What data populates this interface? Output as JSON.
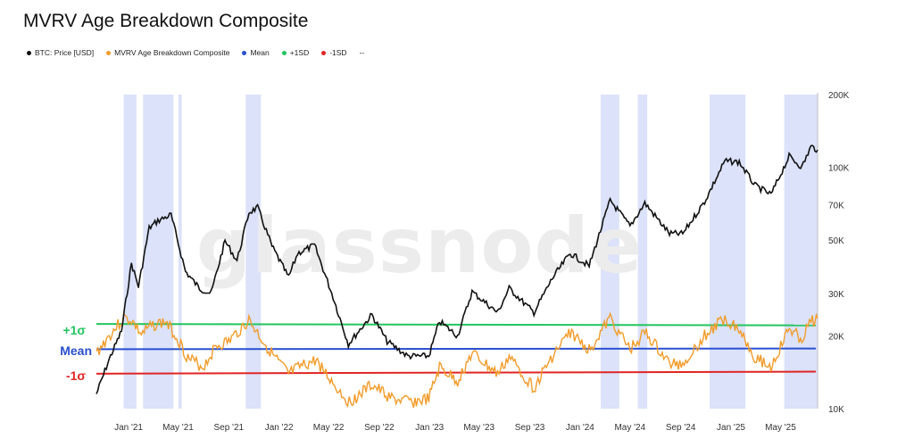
{
  "title": "MVRV Age Breakdown Composite",
  "watermark": "glassnode",
  "legend": [
    {
      "label": "BTC: Price [USD]",
      "color": "#111111"
    },
    {
      "label": "MVRV Age Breakdown Composite",
      "color": "#f29c2b"
    },
    {
      "label": "Mean",
      "color": "#2a4fd0"
    },
    {
      "label": "+1SD",
      "color": "#22c55e"
    },
    {
      "label": "-1SD",
      "color": "#e02424"
    },
    {
      "label": "--",
      "color": ""
    }
  ],
  "annotations": {
    "plus": "+1σ",
    "mean": "Mean",
    "minus": "-1σ"
  },
  "chart_data": {
    "type": "line",
    "x_ticks": [
      "Jan '21",
      "May '21",
      "Sep '21",
      "Jan '22",
      "May '22",
      "Sep '22",
      "Jan '23",
      "May '23",
      "Sep '23",
      "Jan '24",
      "May '24",
      "Sep '24",
      "Jan '25",
      "May '25"
    ],
    "y_right": {
      "scale": "log",
      "ticks": [
        "10K",
        "20K",
        "30K",
        "50K",
        "70K",
        "100K",
        "200K"
      ],
      "tick_values": [
        10000,
        20000,
        30000,
        50000,
        70000,
        100000,
        200000
      ],
      "ylim": [
        10000,
        200000
      ]
    },
    "btc_price": [
      [
        "2020-10-15",
        11500
      ],
      [
        "2020-11-15",
        16000
      ],
      [
        "2020-12-15",
        21000
      ],
      [
        "2021-01-08",
        40000
      ],
      [
        "2021-01-25",
        32000
      ],
      [
        "2021-02-20",
        56000
      ],
      [
        "2021-03-13",
        60000
      ],
      [
        "2021-04-14",
        63500
      ],
      [
        "2021-05-19",
        37000
      ],
      [
        "2021-06-22",
        31500
      ],
      [
        "2021-07-20",
        30000
      ],
      [
        "2021-08-23",
        49500
      ],
      [
        "2021-09-21",
        41000
      ],
      [
        "2021-10-20",
        65000
      ],
      [
        "2021-11-10",
        68000
      ],
      [
        "2021-12-15",
        47000
      ],
      [
        "2022-01-24",
        35000
      ],
      [
        "2022-02-15",
        44000
      ],
      [
        "2022-03-28",
        47500
      ],
      [
        "2022-05-12",
        29000
      ],
      [
        "2022-06-18",
        18500
      ],
      [
        "2022-08-14",
        24500
      ],
      [
        "2022-09-20",
        19000
      ],
      [
        "2022-11-09",
        16500
      ],
      [
        "2022-12-30",
        16500
      ],
      [
        "2023-01-25",
        23000
      ],
      [
        "2023-03-10",
        20000
      ],
      [
        "2023-04-14",
        30500
      ],
      [
        "2023-06-15",
        25000
      ],
      [
        "2023-07-13",
        31500
      ],
      [
        "2023-09-11",
        25000
      ],
      [
        "2023-10-25",
        34500
      ],
      [
        "2023-12-08",
        44000
      ],
      [
        "2024-01-23",
        39000
      ],
      [
        "2024-03-14",
        73000
      ],
      [
        "2024-05-01",
        57000
      ],
      [
        "2024-06-06",
        71000
      ],
      [
        "2024-08-05",
        53000
      ],
      [
        "2024-09-06",
        53000
      ],
      [
        "2024-10-29",
        72000
      ],
      [
        "2024-12-17",
        106000
      ],
      [
        "2025-01-21",
        105000
      ],
      [
        "2025-02-28",
        84000
      ],
      [
        "2025-04-08",
        77000
      ],
      [
        "2025-05-22",
        111000
      ],
      [
        "2025-06-22",
        100000
      ],
      [
        "2025-07-14",
        122000
      ],
      [
        "2025-07-30",
        118000
      ]
    ],
    "mvrv_composite": {
      "mean": [
        [
          0,
          0.41
        ],
        [
          1,
          0.42
        ]
      ],
      "plus_1sd": [
        [
          0,
          0.77
        ],
        [
          1,
          0.75
        ]
      ],
      "minus_1sd": [
        [
          0,
          0.06
        ],
        [
          1,
          0.09
        ]
      ],
      "series": [
        [
          "2020-10-15",
          0.35
        ],
        [
          "2020-11-15",
          0.6
        ],
        [
          "2020-12-20",
          0.85
        ],
        [
          "2021-01-08",
          0.82
        ],
        [
          "2021-02-01",
          0.62
        ],
        [
          "2021-03-01",
          0.75
        ],
        [
          "2021-04-01",
          0.8
        ],
        [
          "2021-05-01",
          0.55
        ],
        [
          "2021-05-25",
          0.28
        ],
        [
          "2021-07-01",
          0.15
        ],
        [
          "2021-08-01",
          0.45
        ],
        [
          "2021-09-01",
          0.52
        ],
        [
          "2021-10-20",
          0.82
        ],
        [
          "2021-11-20",
          0.55
        ],
        [
          "2021-12-20",
          0.3
        ],
        [
          "2022-01-24",
          0.05
        ],
        [
          "2022-02-20",
          0.15
        ],
        [
          "2022-04-01",
          0.25
        ],
        [
          "2022-05-15",
          -0.1
        ],
        [
          "2022-06-20",
          -0.35
        ],
        [
          "2022-08-14",
          -0.1
        ],
        [
          "2022-10-01",
          -0.3
        ],
        [
          "2022-11-20",
          -0.35
        ],
        [
          "2022-12-30",
          -0.3
        ],
        [
          "2023-01-25",
          0.15
        ],
        [
          "2023-03-10",
          -0.05
        ],
        [
          "2023-04-14",
          0.35
        ],
        [
          "2023-06-15",
          0.05
        ],
        [
          "2023-07-13",
          0.3
        ],
        [
          "2023-09-11",
          -0.15
        ],
        [
          "2023-10-25",
          0.3
        ],
        [
          "2023-12-08",
          0.65
        ],
        [
          "2024-01-23",
          0.4
        ],
        [
          "2024-03-14",
          0.85
        ],
        [
          "2024-05-01",
          0.4
        ],
        [
          "2024-06-06",
          0.65
        ],
        [
          "2024-08-05",
          0.2
        ],
        [
          "2024-09-06",
          0.2
        ],
        [
          "2024-10-29",
          0.6
        ],
        [
          "2024-12-17",
          0.85
        ],
        [
          "2025-01-21",
          0.7
        ],
        [
          "2025-02-28",
          0.3
        ],
        [
          "2025-04-08",
          0.15
        ],
        [
          "2025-05-22",
          0.7
        ],
        [
          "2025-06-22",
          0.55
        ],
        [
          "2025-07-14",
          0.8
        ],
        [
          "2025-07-30",
          0.85
        ]
      ]
    },
    "shaded_periods": [
      [
        "2020-12-20",
        "2021-01-20"
      ],
      [
        "2021-02-05",
        "2021-04-20"
      ],
      [
        "2021-05-02",
        "2021-05-10"
      ],
      [
        "2021-10-12",
        "2021-11-18"
      ],
      [
        "2024-02-20",
        "2024-04-05"
      ],
      [
        "2024-05-20",
        "2024-06-12"
      ],
      [
        "2024-11-10",
        "2025-02-05"
      ],
      [
        "2025-05-10",
        "2025-07-30"
      ]
    ]
  }
}
